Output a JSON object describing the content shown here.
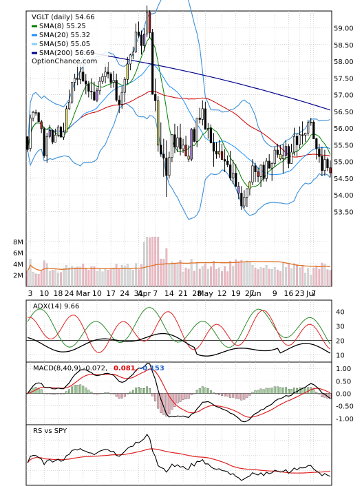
{
  "chart_data": {
    "type": "candlestick",
    "title": "VGLT (daily) 54.66",
    "watermark": "OptionChance.com",
    "x_labels": [
      {
        "i": 1,
        "t": "3"
      },
      {
        "i": 6,
        "t": "10"
      },
      {
        "i": 11,
        "t": "18"
      },
      {
        "i": 15,
        "t": "24"
      },
      {
        "i": 20,
        "t": "Mar"
      },
      {
        "i": 25,
        "t": "10"
      },
      {
        "i": 30,
        "t": "17"
      },
      {
        "i": 35,
        "t": "24"
      },
      {
        "i": 40,
        "t": "31"
      },
      {
        "i": 42,
        "t": "Apr"
      },
      {
        "i": 46,
        "t": "7"
      },
      {
        "i": 51,
        "t": "14"
      },
      {
        "i": 56,
        "t": "21"
      },
      {
        "i": 61,
        "t": "28"
      },
      {
        "i": 64,
        "t": "May"
      },
      {
        "i": 70,
        "t": "12"
      },
      {
        "i": 75,
        "t": "19"
      },
      {
        "i": 80,
        "t": "27"
      },
      {
        "i": 82,
        "t": "Jun"
      },
      {
        "i": 89,
        "t": "9"
      },
      {
        "i": 94,
        "t": "16"
      },
      {
        "i": 98,
        "t": "23"
      },
      {
        "i": 102,
        "t": "Jul"
      },
      {
        "i": 103,
        "t": "7"
      }
    ],
    "price": {
      "ylim": [
        53.3,
        59.3
      ],
      "ticks": [
        "53.50",
        "54.00",
        "54.50",
        "55.00",
        "55.50",
        "56.00",
        "56.50",
        "57.00",
        "57.50",
        "58.00",
        "58.50",
        "59.00"
      ],
      "legend": [
        {
          "label": "SMA(8) 55.25",
          "color": "#008000"
        },
        {
          "label": "SMA(20) 55.32",
          "color": "#1e90ff"
        },
        {
          "label": "SMA(50) 55.05",
          "color": "#87cefa"
        },
        {
          "label": "SMA(200) 56.69",
          "color": "#00008b"
        }
      ],
      "candles": [
        [
          55.74,
          55.75,
          55.29,
          55.36
        ],
        [
          55.39,
          56.4,
          55.3,
          56.3
        ],
        [
          56.3,
          56.52,
          56.2,
          56.47
        ],
        [
          56.47,
          56.55,
          56.37,
          56.46
        ],
        [
          56.46,
          56.47,
          56.19,
          56.19
        ],
        [
          56.19,
          56.25,
          55.85,
          55.98
        ],
        [
          55.98,
          56.04,
          55.11,
          55.17
        ],
        [
          55.17,
          55.86,
          54.96,
          55.75
        ],
        [
          55.75,
          56.1,
          55.69,
          55.93
        ],
        [
          55.93,
          55.96,
          55.52,
          55.58
        ],
        [
          55.58,
          55.98,
          55.57,
          55.79
        ],
        [
          55.79,
          56.09,
          55.73,
          56.03
        ],
        [
          56.03,
          56.06,
          55.73,
          55.73
        ],
        [
          55.73,
          56.16,
          55.65,
          55.88
        ],
        [
          55.88,
          56.67,
          55.87,
          56.58
        ],
        [
          56.58,
          57.15,
          56.54,
          56.78
        ],
        [
          56.78,
          57.37,
          56.73,
          57.37
        ],
        [
          57.37,
          57.63,
          57.11,
          57.49
        ],
        [
          57.49,
          57.97,
          57.28,
          57.46
        ],
        [
          57.46,
          57.95,
          57.32,
          57.68
        ],
        [
          57.68,
          58.12,
          57.38,
          57.41
        ],
        [
          57.41,
          57.62,
          57.01,
          57.32
        ],
        [
          57.32,
          57.41,
          56.92,
          57.1
        ],
        [
          57.1,
          57.49,
          56.86,
          57.08
        ],
        [
          57.08,
          57.39,
          56.81,
          56.84
        ],
        [
          56.84,
          57.21,
          56.78,
          57.12
        ],
        [
          57.12,
          57.53,
          57.0,
          57.4
        ],
        [
          57.4,
          57.64,
          57.32,
          57.54
        ],
        [
          57.54,
          57.93,
          57.34,
          57.68
        ],
        [
          57.68,
          57.98,
          57.49,
          57.62
        ],
        [
          57.62,
          57.67,
          57.2,
          57.37
        ],
        [
          57.37,
          57.71,
          57.21,
          57.43
        ],
        [
          57.43,
          57.63,
          56.79,
          56.84
        ],
        [
          56.84,
          56.98,
          56.45,
          56.71
        ],
        [
          56.71,
          57.26,
          56.58,
          57.07
        ],
        [
          57.07,
          57.53,
          56.78,
          57.46
        ],
        [
          57.46,
          58.13,
          57.32,
          57.92
        ],
        [
          57.92,
          58.23,
          57.73,
          58.19
        ],
        [
          58.19,
          58.44,
          58.06,
          58.28
        ],
        [
          58.28,
          59.13,
          58.25,
          58.88
        ],
        [
          58.88,
          59.19,
          58.71,
          58.78
        ],
        [
          58.78,
          58.92,
          58.2,
          58.47
        ],
        [
          58.47,
          58.99,
          58.3,
          58.82
        ],
        [
          58.82,
          59.67,
          58.72,
          59.47
        ],
        [
          59.47,
          59.53,
          58.7,
          58.86
        ],
        [
          58.86,
          58.97,
          57.01,
          57.01
        ],
        [
          57.01,
          57.48,
          56.5,
          56.82
        ],
        [
          56.82,
          56.96,
          55.29,
          55.49
        ],
        [
          55.49,
          56.17,
          55.14,
          55.22
        ],
        [
          55.22,
          55.68,
          54.54,
          55.1
        ],
        [
          55.1,
          55.63,
          53.94,
          54.58
        ],
        [
          54.58,
          55.29,
          54.49,
          55.12
        ],
        [
          55.12,
          55.82,
          54.98,
          55.8
        ],
        [
          55.8,
          56.13,
          55.25,
          55.43
        ],
        [
          55.43,
          56.06,
          55.28,
          55.71
        ],
        [
          55.71,
          56.13,
          55.18,
          55.38
        ],
        [
          55.38,
          55.68,
          55.26,
          55.49
        ],
        [
          55.49,
          55.77,
          55.16,
          55.16
        ],
        [
          55.16,
          55.48,
          54.99,
          55.07
        ],
        [
          55.07,
          56.0,
          55.01,
          55.96
        ],
        [
          55.96,
          56.02,
          55.57,
          55.6
        ],
        [
          55.6,
          56.31,
          55.43,
          56.3
        ],
        [
          56.3,
          56.61,
          56.14,
          56.26
        ],
        [
          56.26,
          56.83,
          56.08,
          56.58
        ],
        [
          56.58,
          56.79,
          55.96,
          55.96
        ],
        [
          55.96,
          56.15,
          55.68,
          55.99
        ],
        [
          55.99,
          56.11,
          55.54,
          55.56
        ],
        [
          55.56,
          55.85,
          54.84,
          55.31
        ],
        [
          55.31,
          55.58,
          55.08,
          55.22
        ],
        [
          55.22,
          55.65,
          55.11,
          55.3
        ],
        [
          55.3,
          55.53,
          55.06,
          55.06
        ],
        [
          55.06,
          55.37,
          54.68,
          55.01
        ],
        [
          55.01,
          55.18,
          54.83,
          54.9
        ],
        [
          54.9,
          55.32,
          54.43,
          54.5
        ],
        [
          54.5,
          55.05,
          54.33,
          54.65
        ],
        [
          54.65,
          54.92,
          54.25,
          54.25
        ],
        [
          54.25,
          54.39,
          53.87,
          54.05
        ],
        [
          54.05,
          54.26,
          53.55,
          53.67
        ],
        [
          53.67,
          54.14,
          53.6,
          53.93
        ],
        [
          53.93,
          54.2,
          53.63,
          54.18
        ],
        [
          54.18,
          54.42,
          53.98,
          54.38
        ],
        [
          54.38,
          55.07,
          54.29,
          54.87
        ],
        [
          54.87,
          54.96,
          54.39,
          54.69
        ],
        [
          54.69,
          54.82,
          54.38,
          54.55
        ],
        [
          54.55,
          54.91,
          54.23,
          54.89
        ],
        [
          54.89,
          55.0,
          54.4,
          54.49
        ],
        [
          54.49,
          55.1,
          54.4,
          55.01
        ],
        [
          55.01,
          55.22,
          54.78,
          54.8
        ],
        [
          54.8,
          54.97,
          54.42,
          54.94
        ],
        [
          54.94,
          55.45,
          54.84,
          55.34
        ],
        [
          55.34,
          55.53,
          55.11,
          55.21
        ],
        [
          55.21,
          55.49,
          55.03,
          55.08
        ],
        [
          55.08,
          55.52,
          54.64,
          55.18
        ],
        [
          55.18,
          55.63,
          55.05,
          55.45
        ],
        [
          55.45,
          55.52,
          54.8,
          54.94
        ],
        [
          54.94,
          55.53,
          54.93,
          55.28
        ],
        [
          55.28,
          56.01,
          55.18,
          55.75
        ],
        [
          55.75,
          55.86,
          55.15,
          55.5
        ],
        [
          55.5,
          56.05,
          55.39,
          55.8
        ],
        [
          55.8,
          56.2,
          55.51,
          55.79
        ],
        [
          55.79,
          55.86,
          55.59,
          55.85
        ],
        [
          55.85,
          56.24,
          55.76,
          56.16
        ],
        [
          56.16,
          56.31,
          56.07,
          56.18
        ],
        [
          56.18,
          56.24,
          55.67,
          55.68
        ],
        [
          55.68,
          55.71,
          55.06,
          55.38
        ],
        [
          55.38,
          55.53,
          54.96,
          55.15
        ],
        [
          55.15,
          55.44,
          54.56,
          54.73
        ],
        [
          54.73,
          55.35,
          54.57,
          55.06
        ],
        [
          55.06,
          55.12,
          54.71,
          54.81
        ],
        [
          54.81,
          55.03,
          54.53,
          54.66
        ]
      ]
    },
    "volume": {
      "ticks": [
        "2M",
        "4M",
        "6M",
        "8M"
      ],
      "ymax": 9.2
    },
    "adx": {
      "label": "ADX(14) 9.66",
      "ticks": [
        "10",
        "20",
        "30",
        "40"
      ],
      "ylim": [
        5,
        48
      ]
    },
    "macd": {
      "label": "MACD(8,40,9) -0.072,",
      "signal": "0.081,",
      "signal_color": "#e00000",
      "hist": "-0.153",
      "hist_color": "#1e5fd0",
      "ticks": [
        "1.00",
        "0.50",
        "0.00",
        "-0.50",
        "-1.00"
      ],
      "ylim": [
        -1.25,
        1.25
      ]
    },
    "rs": {
      "label": "RS vs SPY"
    }
  }
}
